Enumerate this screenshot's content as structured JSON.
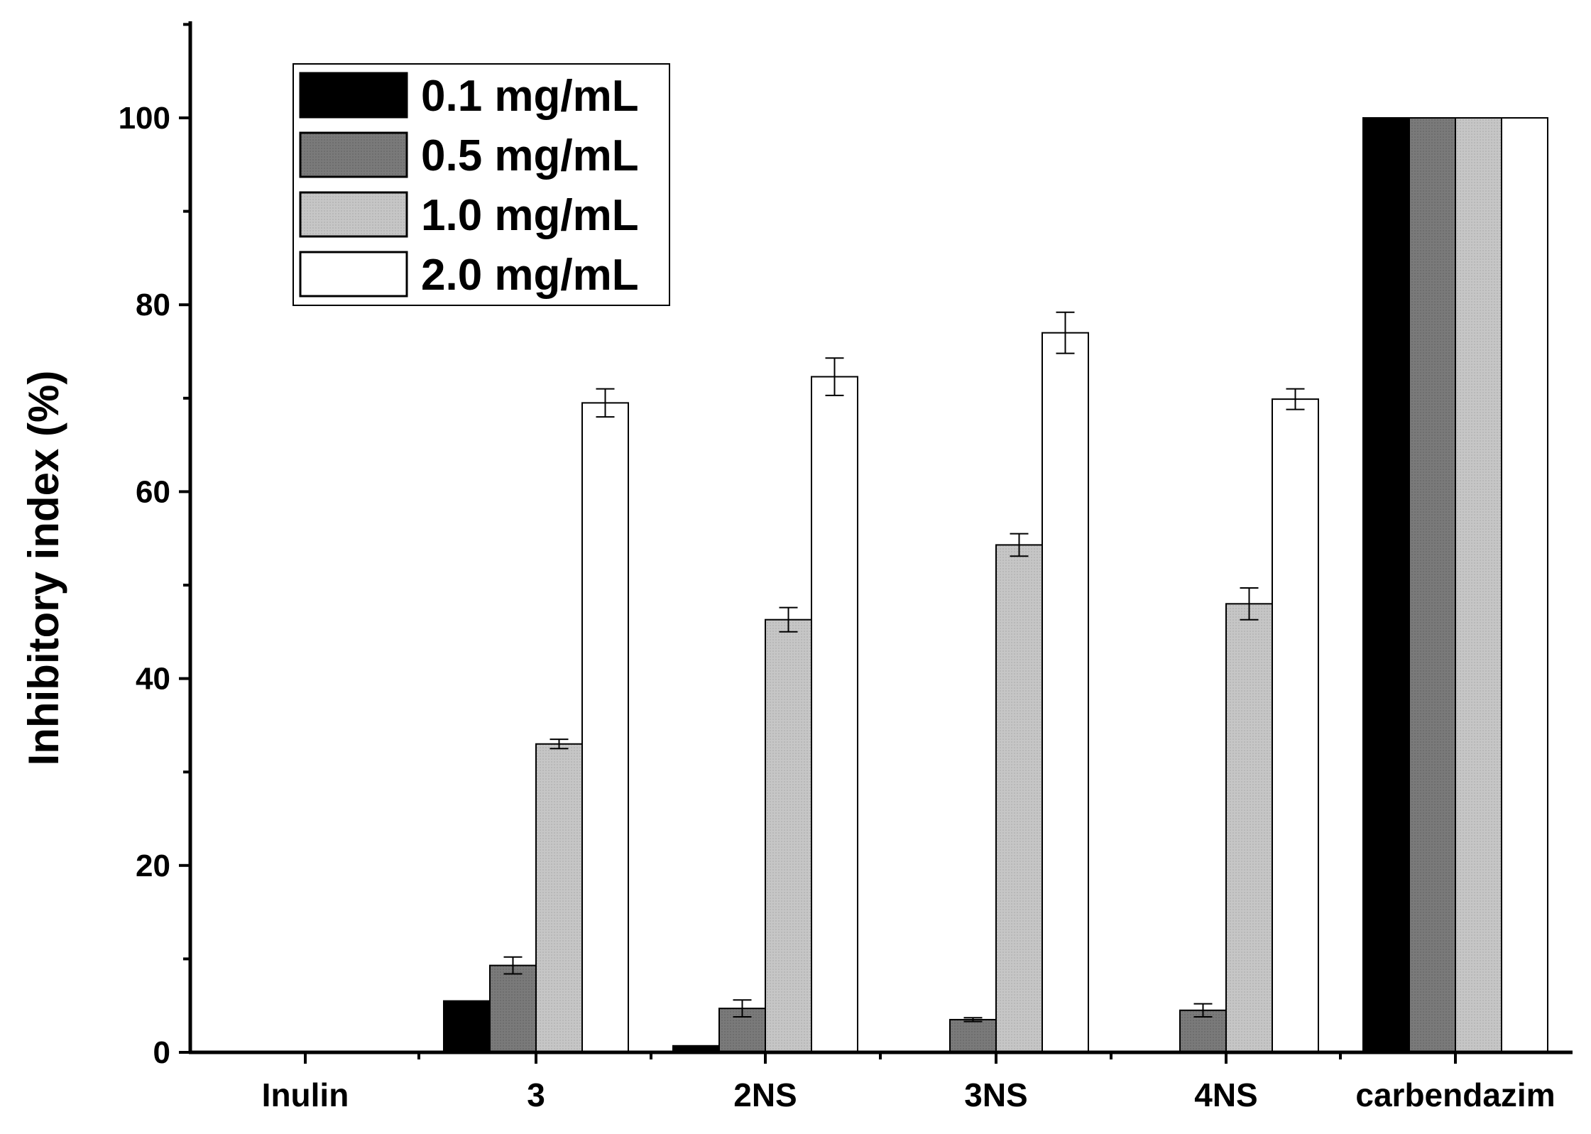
{
  "chart_data": {
    "type": "bar",
    "title": "",
    "xlabel": "",
    "ylabel": "Inhibitory index (%)",
    "ylim": [
      0,
      110
    ],
    "yticks": [
      0,
      20,
      40,
      60,
      80,
      100
    ],
    "grid": false,
    "legend_position": "top-left",
    "categories": [
      "Inulin",
      "3",
      "2NS",
      "3NS",
      "4NS",
      "carbendazim"
    ],
    "series": [
      {
        "name": "0.1 mg/mL",
        "color": "#000000",
        "values": [
          0,
          5.5,
          0.7,
          0,
          0,
          100
        ],
        "errors": [
          0,
          0,
          0,
          0,
          0,
          0
        ]
      },
      {
        "name": "0.5 mg/mL",
        "color": "#7a7a7a",
        "values": [
          0,
          9.3,
          4.7,
          3.5,
          4.5,
          100
        ],
        "errors": [
          0,
          0.9,
          0.9,
          0.2,
          0.7,
          0
        ]
      },
      {
        "name": "1.0 mg/mL",
        "color": "#c4c4c4",
        "values": [
          0,
          33.0,
          46.3,
          54.3,
          48.0,
          100
        ],
        "errors": [
          0,
          0.5,
          1.3,
          1.2,
          1.7,
          0
        ]
      },
      {
        "name": "2.0 mg/mL",
        "color": "#ffffff",
        "values": [
          0,
          69.5,
          72.3,
          77.0,
          69.9,
          100
        ],
        "errors": [
          0,
          1.5,
          2.0,
          2.2,
          1.1,
          0
        ]
      }
    ]
  }
}
